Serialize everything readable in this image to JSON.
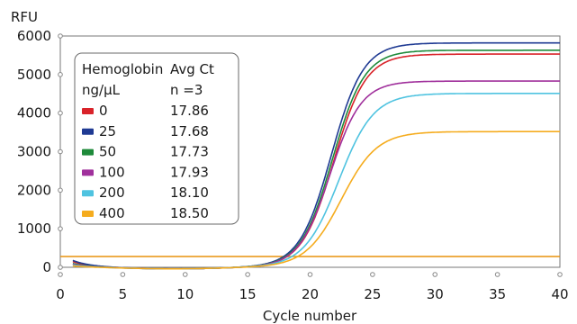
{
  "chart_data": {
    "type": "line",
    "title": "",
    "xlabel": "Cycle number",
    "ylabel": "RFU",
    "xlim": [
      0,
      40
    ],
    "ylim": [
      0,
      6000
    ],
    "x_ticks": [
      0,
      5,
      10,
      15,
      20,
      25,
      30,
      35,
      40
    ],
    "y_ticks": [
      0,
      1000,
      2000,
      3000,
      4000,
      5000,
      6000
    ],
    "threshold": 280,
    "threshold_color": "#e8920c",
    "grid": false,
    "legend": {
      "placement": "top-left",
      "header_col1_line1": "Hemoglobin",
      "header_col1_line2": "ng/µL",
      "header_col2_line1": "Avg Ct",
      "header_col2_line2": "n =3"
    },
    "series": [
      {
        "name": "0",
        "avg_ct": "17.86",
        "color": "#d9232a",
        "baseline": 150,
        "plateau": 5530,
        "midpoint": 21.9,
        "slope": 0.78
      },
      {
        "name": "25",
        "avg_ct": "17.68",
        "color": "#1f3a93",
        "baseline": 180,
        "plateau": 5820,
        "midpoint": 21.7,
        "slope": 0.78
      },
      {
        "name": "50",
        "avg_ct": "17.73",
        "color": "#1e8a3a",
        "baseline": 100,
        "plateau": 5630,
        "midpoint": 21.8,
        "slope": 0.78
      },
      {
        "name": "100",
        "avg_ct": "17.93",
        "color": "#a0309c",
        "baseline": 80,
        "plateau": 4830,
        "midpoint": 21.6,
        "slope": 0.8
      },
      {
        "name": "200",
        "avg_ct": "18.10",
        "color": "#4fc3e0",
        "baseline": 60,
        "plateau": 4510,
        "midpoint": 22.3,
        "slope": 0.72
      },
      {
        "name": "400",
        "avg_ct": "18.50",
        "color": "#f5ac1e",
        "baseline": 40,
        "plateau": 3520,
        "midpoint": 22.5,
        "slope": 0.7
      }
    ]
  }
}
